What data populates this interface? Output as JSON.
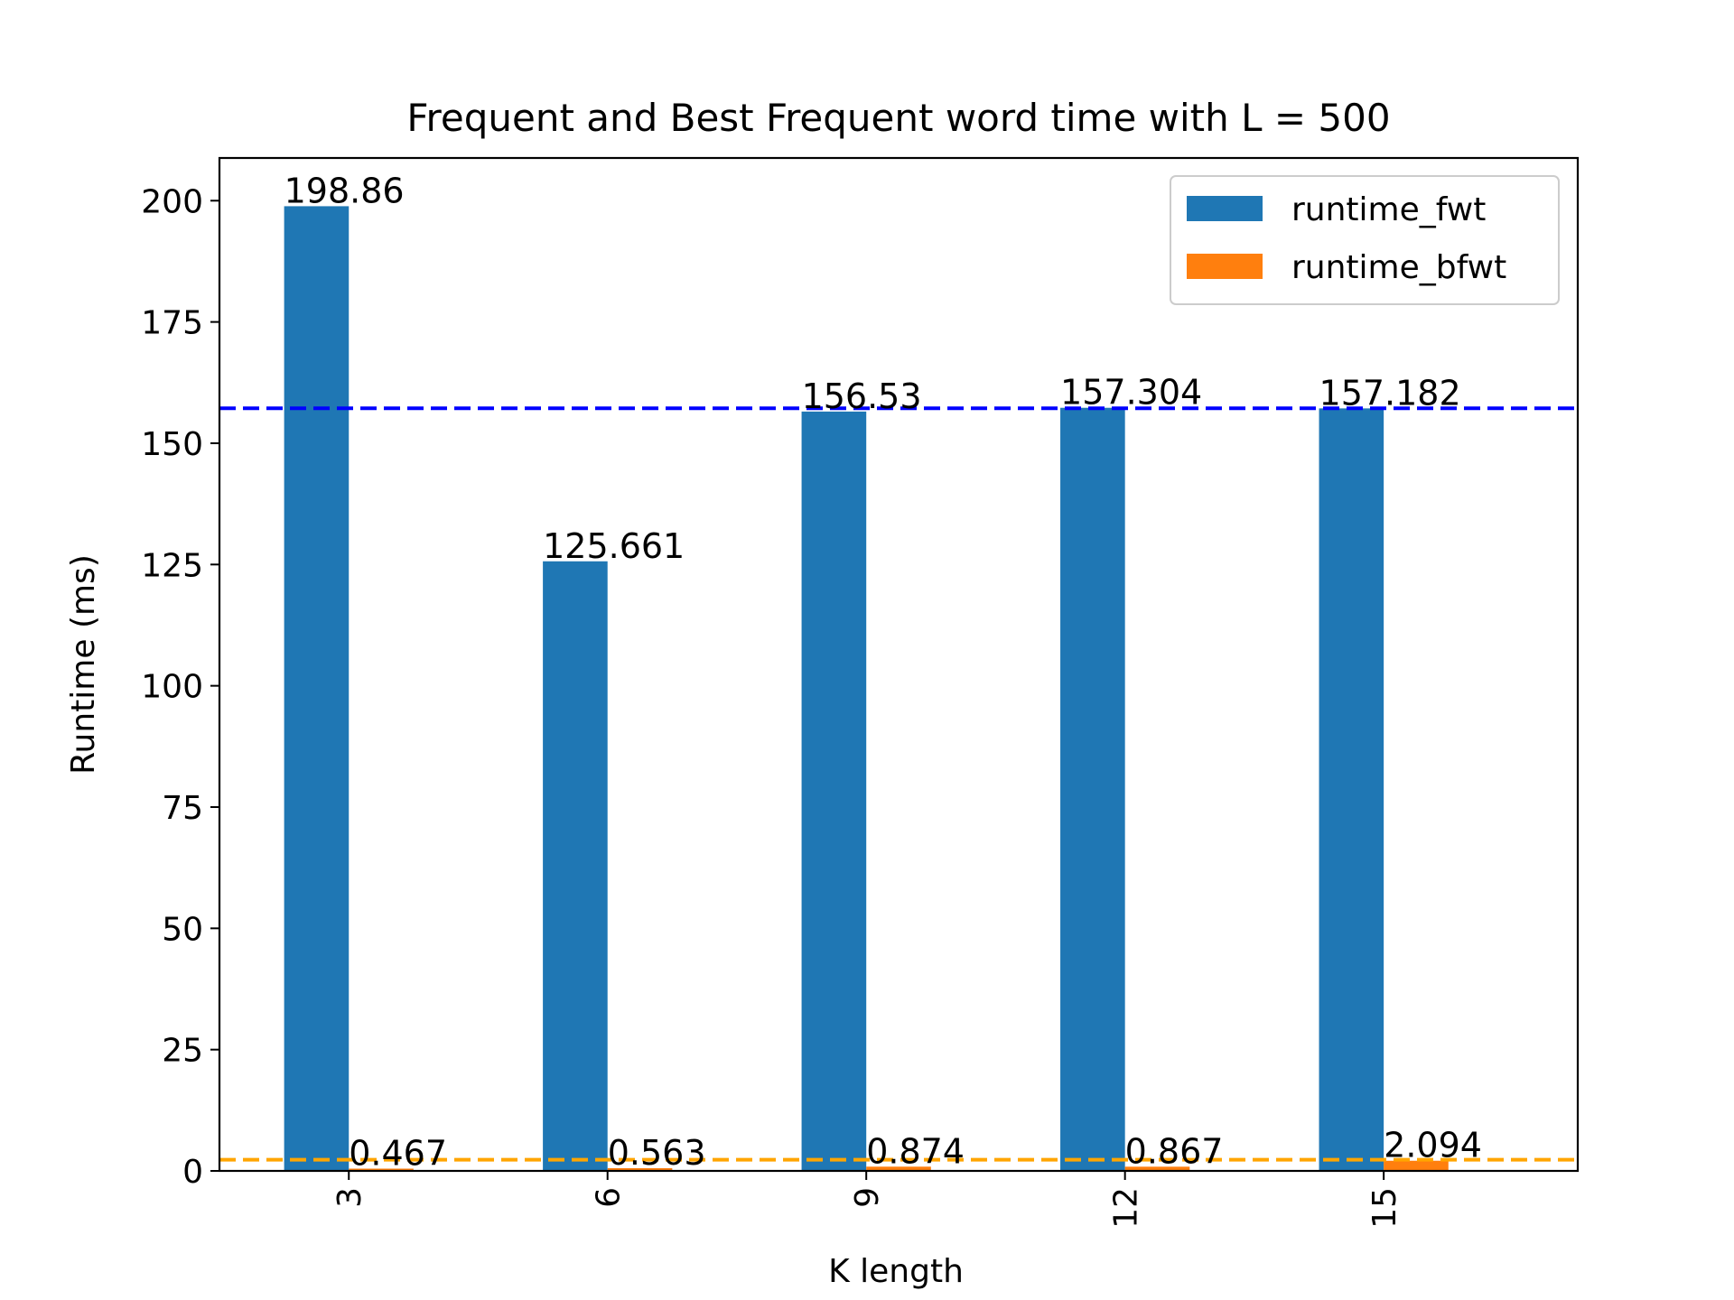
{
  "chart_data": {
    "type": "bar",
    "title": "Frequent and Best Frequent word time with L = 500",
    "xlabel": "K length",
    "ylabel": "Runtime (ms)",
    "categories": [
      "3",
      "6",
      "9",
      "12",
      "15"
    ],
    "series": [
      {
        "name": "runtime_fwt",
        "color": "#1f77b4",
        "values": [
          198.86,
          125.661,
          156.53,
          157.304,
          157.182
        ],
        "labels": [
          "198.86",
          "125.661",
          "156.53",
          "157.304",
          "157.182"
        ]
      },
      {
        "name": "runtime_bfwt",
        "color": "#ff7f0e",
        "values": [
          0.467,
          0.563,
          0.874,
          0.867,
          2.094
        ],
        "labels": [
          "0.467",
          "0.563",
          "0.874",
          "0.867",
          "2.094"
        ]
      }
    ],
    "ylim": [
      0,
      208.8
    ],
    "yticks": [
      0,
      25,
      50,
      75,
      100,
      125,
      150,
      175,
      200
    ],
    "reference_lines": [
      {
        "value": 157.2,
        "color": "#0000ff",
        "style": "dashed"
      },
      {
        "value": 2.3,
        "color": "#ffa500",
        "style": "dashed"
      }
    ],
    "legend": "top-right",
    "grid": false,
    "xtick_rotation": "vertical"
  }
}
